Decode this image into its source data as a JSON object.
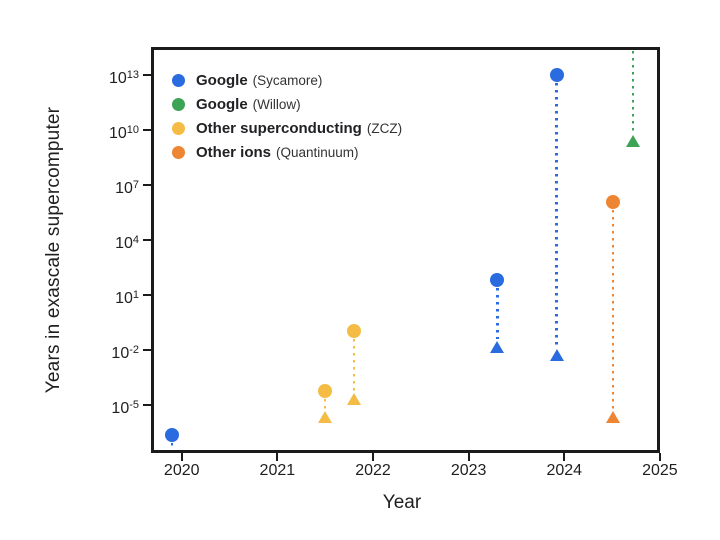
{
  "page": {
    "background": "#ffffff"
  },
  "chart_data": {
    "type": "scatter",
    "title": "",
    "xlabel": "Year",
    "ylabel": "Years in exascale supercomputer",
    "grid": false,
    "legend_position": "inside-top-left",
    "axis_color": "#1b1b1b",
    "text_color": "#1f1f1f",
    "x_axis": {
      "ticks": [
        2020,
        2021,
        2022,
        2023,
        2024,
        2025
      ],
      "range": [
        2019.71,
        2024.97
      ]
    },
    "y_axis": {
      "scale": "log10",
      "tick_base": "10",
      "tick_exponents": [
        13,
        10,
        7,
        4,
        1,
        -2,
        -5
      ],
      "range_exponents": [
        -7.45,
        14.35
      ]
    },
    "marker_shapes": {
      "upper": "circle",
      "lower": "triangle-up",
      "link": "dotted-vertical-line"
    },
    "series": [
      {
        "name": "Google (Sycamore)",
        "label": "Google",
        "sublabel": "(Sycamore)",
        "color": "#2b6be0",
        "points": [
          {
            "year": 2019.9,
            "circle_log10_years": -6.65,
            "triangle_log10_years": null,
            "stem_to_axis": true
          },
          {
            "year": 2023.3,
            "circle_log10_years": 1.8,
            "triangle_log10_years": -1.9
          },
          {
            "year": 2023.92,
            "circle_log10_years": 13.0,
            "triangle_log10_years": -2.35
          }
        ]
      },
      {
        "name": "Google (Willow)",
        "label": "Google",
        "sublabel": "(Willow)",
        "color": "#3da355",
        "points": [
          {
            "year": 2024.72,
            "circle_log10_years": null,
            "circle_above_range": true,
            "triangle_log10_years": 9.35
          }
        ]
      },
      {
        "name": "Other superconducting (ZCZ)",
        "label": "Other superconducting",
        "sublabel": "(ZCZ)",
        "color": "#f4bc45",
        "points": [
          {
            "year": 2021.5,
            "circle_log10_years": -4.25,
            "triangle_log10_years": -5.7
          },
          {
            "year": 2021.8,
            "circle_log10_years": -0.95,
            "triangle_log10_years": -4.7
          }
        ]
      },
      {
        "name": "Other ions (Quantinuum)",
        "label": "Other ions",
        "sublabel": "(Quantinuum)",
        "color": "#ee8533",
        "points": [
          {
            "year": 2024.51,
            "circle_log10_years": 6.05,
            "triangle_log10_years": -5.7
          }
        ]
      }
    ]
  }
}
